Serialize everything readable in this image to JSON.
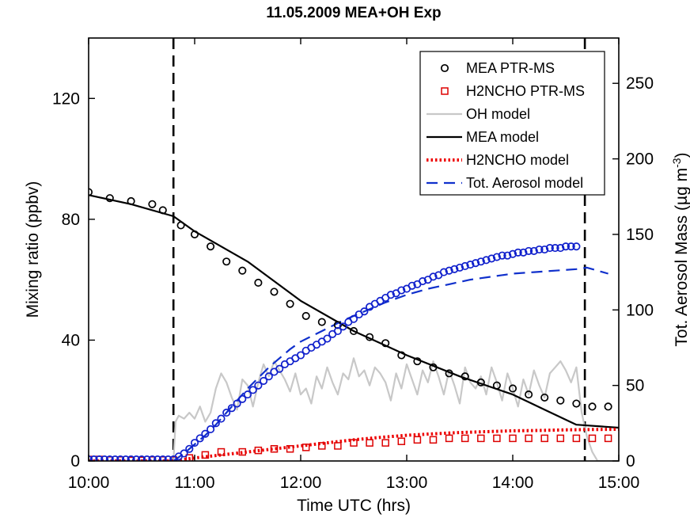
{
  "chart_data": {
    "type": "line",
    "title": "11.05.2009 MEA+OH Exp",
    "xlabel": "Time UTC (hrs)",
    "ylabel": "Mixing ratio (ppbv)",
    "y2label": "Tot. Aerosol Mass (µg m",
    "y2label_sup": "-3",
    "y2label_end": ")",
    "xlim_hours": [
      10,
      15
    ],
    "ylim": [
      0,
      140
    ],
    "y2lim": [
      0,
      280
    ],
    "xticks": [
      "10:00",
      "11:00",
      "12:00",
      "13:00",
      "14:00",
      "15:00"
    ],
    "yticks": [
      0,
      40,
      80,
      120
    ],
    "y2ticks": [
      0,
      50,
      100,
      150,
      200,
      250
    ],
    "grid": false,
    "legend_placement": "top-right",
    "vlines_hours": [
      10.8,
      14.68
    ],
    "series": [
      {
        "name": "MEA PTR-MS",
        "axis": "left",
        "style": "circle",
        "color": "#000000",
        "x": [
          10.0,
          10.2,
          10.4,
          10.6,
          10.7,
          10.87,
          11.0,
          11.15,
          11.3,
          11.45,
          11.6,
          11.75,
          11.9,
          12.05,
          12.2,
          12.35,
          12.5,
          12.65,
          12.8,
          12.95,
          13.1,
          13.25,
          13.4,
          13.55,
          13.7,
          13.85,
          14.0,
          14.15,
          14.3,
          14.45,
          14.6,
          14.75,
          14.9
        ],
        "y": [
          89,
          87,
          86,
          85,
          83,
          78,
          75,
          71,
          66,
          63,
          59,
          56,
          52,
          48,
          46,
          45,
          43,
          41,
          39,
          35,
          33,
          31,
          29,
          28,
          26,
          25,
          24,
          22,
          21,
          20,
          19,
          18,
          18
        ]
      },
      {
        "name": "H2NCHO PTR-MS",
        "axis": "left",
        "style": "square",
        "color": "#dd0000",
        "x": [
          10.0,
          10.1,
          10.2,
          10.3,
          10.4,
          10.5,
          10.6,
          10.7,
          10.8,
          10.95,
          11.1,
          11.25,
          11.45,
          11.6,
          11.75,
          11.9,
          12.05,
          12.2,
          12.35,
          12.5,
          12.65,
          12.8,
          12.95,
          13.1,
          13.25,
          13.4,
          13.55,
          13.7,
          13.85,
          14.0,
          14.15,
          14.3,
          14.45,
          14.6,
          14.75,
          14.9
        ],
        "y": [
          0.5,
          0.5,
          0.3,
          0.3,
          0.2,
          0.2,
          0.3,
          0.3,
          0.3,
          1,
          2,
          3,
          3,
          3.5,
          4,
          4,
          4.5,
          5,
          5,
          6,
          6,
          6,
          6.5,
          7,
          7,
          7.5,
          7.5,
          7.5,
          7.5,
          7.5,
          7.5,
          7.5,
          7.5,
          7.5,
          7.5,
          7.5
        ]
      },
      {
        "name": "OH model",
        "axis": "left",
        "style": "line",
        "color": "#c8c8c8",
        "x": [
          10.0,
          10.8,
          10.82,
          10.85,
          10.9,
          10.95,
          11.0,
          11.05,
          11.1,
          11.15,
          11.2,
          11.25,
          11.3,
          11.35,
          11.4,
          11.45,
          11.5,
          11.55,
          11.6,
          11.65,
          11.7,
          11.75,
          11.8,
          11.85,
          11.9,
          11.95,
          12.0,
          12.05,
          12.1,
          12.15,
          12.2,
          12.25,
          12.3,
          12.35,
          12.4,
          12.45,
          12.5,
          12.55,
          12.6,
          12.65,
          12.7,
          12.75,
          12.8,
          12.85,
          12.9,
          12.95,
          13.0,
          13.05,
          13.1,
          13.15,
          13.2,
          13.25,
          13.3,
          13.35,
          13.4,
          13.45,
          13.5,
          13.55,
          13.6,
          13.65,
          13.7,
          13.75,
          13.8,
          13.85,
          13.9,
          13.95,
          14.0,
          14.05,
          14.1,
          14.15,
          14.2,
          14.25,
          14.3,
          14.35,
          14.4,
          14.45,
          14.5,
          14.55,
          14.6,
          14.65,
          14.7,
          14.75,
          14.8,
          15.0
        ],
        "y": [
          0,
          0,
          13,
          15,
          14,
          16,
          14,
          18,
          13,
          16,
          24,
          29,
          26,
          21,
          17,
          27,
          25,
          18,
          26,
          32,
          28,
          33,
          30,
          27,
          23,
          29,
          22,
          24,
          19,
          28,
          24,
          31,
          26,
          22,
          29,
          27,
          34,
          28,
          30,
          25,
          31,
          29,
          26,
          20,
          29,
          24,
          32,
          27,
          22,
          30,
          26,
          33,
          28,
          22,
          30,
          25,
          19,
          31,
          26,
          24,
          28,
          22,
          31,
          26,
          20,
          29,
          24,
          18,
          27,
          22,
          30,
          25,
          21,
          29,
          31,
          33,
          30,
          26,
          31,
          16,
          8,
          3,
          0,
          0
        ]
      },
      {
        "name": "MEA model",
        "axis": "left",
        "style": "line",
        "color": "#000000",
        "x": [
          10.0,
          10.4,
          10.8,
          11.0,
          11.5,
          12.0,
          12.5,
          13.0,
          13.5,
          14.0,
          14.3,
          14.6,
          15.0
        ],
        "y": [
          88,
          85,
          81,
          76,
          66,
          53,
          43,
          35,
          28,
          22,
          17,
          12,
          11
        ]
      },
      {
        "name": "H2NCHO model",
        "axis": "left",
        "style": "dotted",
        "color": "#ee0000",
        "x": [
          10.0,
          10.8,
          11.0,
          11.25,
          11.5,
          11.75,
          12.0,
          12.25,
          12.5,
          12.75,
          13.0,
          13.25,
          13.5,
          13.75,
          14.0,
          14.25,
          14.5,
          14.75,
          15.0
        ],
        "y": [
          0,
          0,
          1,
          2,
          3,
          4,
          5,
          6,
          7,
          7.8,
          8.5,
          9,
          9.4,
          9.7,
          10,
          10.1,
          10.3,
          10.4,
          10.5
        ]
      },
      {
        "name": "Tot. Aerosol model",
        "axis": "right",
        "style": "dashed",
        "color": "#1030cc",
        "x": [
          10.8,
          10.9,
          11.0,
          11.1,
          11.2,
          11.3,
          11.4,
          11.5,
          11.6,
          11.7,
          11.8,
          11.9,
          12.0,
          12.2,
          12.4,
          12.6,
          12.8,
          13.0,
          13.2,
          13.4,
          13.6,
          13.8,
          14.0,
          14.2,
          14.4,
          14.6,
          14.7,
          14.8,
          14.9
        ],
        "y": [
          0,
          5,
          11,
          17,
          24,
          32,
          40,
          48,
          55,
          62,
          68,
          74,
          79,
          86,
          93,
          99,
          105,
          110,
          114,
          117,
          120,
          122,
          124,
          125,
          126,
          127,
          128,
          126,
          124
        ]
      },
      {
        "name": "",
        "axis": "right",
        "style": "circle",
        "color": "#1020cc",
        "x": [
          10.0,
          10.05,
          10.1,
          10.15,
          10.2,
          10.25,
          10.3,
          10.35,
          10.4,
          10.45,
          10.5,
          10.55,
          10.6,
          10.65,
          10.7,
          10.75,
          10.8,
          10.85,
          10.9,
          10.95,
          11.0,
          11.05,
          11.1,
          11.15,
          11.2,
          11.25,
          11.3,
          11.35,
          11.4,
          11.45,
          11.5,
          11.55,
          11.6,
          11.65,
          11.7,
          11.75,
          11.8,
          11.85,
          11.9,
          11.95,
          12.0,
          12.05,
          12.1,
          12.15,
          12.2,
          12.25,
          12.3,
          12.35,
          12.4,
          12.45,
          12.5,
          12.55,
          12.6,
          12.65,
          12.7,
          12.75,
          12.8,
          12.85,
          12.9,
          12.95,
          13.0,
          13.05,
          13.1,
          13.15,
          13.2,
          13.25,
          13.3,
          13.35,
          13.4,
          13.45,
          13.5,
          13.55,
          13.6,
          13.65,
          13.7,
          13.75,
          13.8,
          13.85,
          13.9,
          13.95,
          14.0,
          14.05,
          14.1,
          14.15,
          14.2,
          14.25,
          14.3,
          14.35,
          14.4,
          14.45,
          14.5,
          14.55,
          14.6
        ],
        "y": [
          1,
          1,
          1,
          1,
          1,
          1,
          1,
          1,
          1,
          1,
          1,
          1,
          1,
          1,
          1,
          1,
          1,
          3,
          5,
          8,
          12,
          15,
          18,
          21,
          25,
          28,
          32,
          35,
          38,
          41,
          44,
          47,
          50,
          53,
          56,
          59,
          61,
          64,
          66,
          68,
          70,
          73,
          75,
          77,
          79,
          81,
          84,
          86,
          89,
          92,
          94,
          97,
          99,
          102,
          104,
          106,
          108,
          110,
          111,
          113,
          114,
          116,
          117,
          119,
          120,
          122,
          123,
          125,
          126,
          127,
          128,
          129,
          130,
          131,
          132,
          133,
          134,
          135,
          136,
          136,
          137,
          138,
          138,
          139,
          139,
          140,
          140,
          141,
          141,
          141,
          142,
          142,
          142
        ]
      }
    ]
  }
}
